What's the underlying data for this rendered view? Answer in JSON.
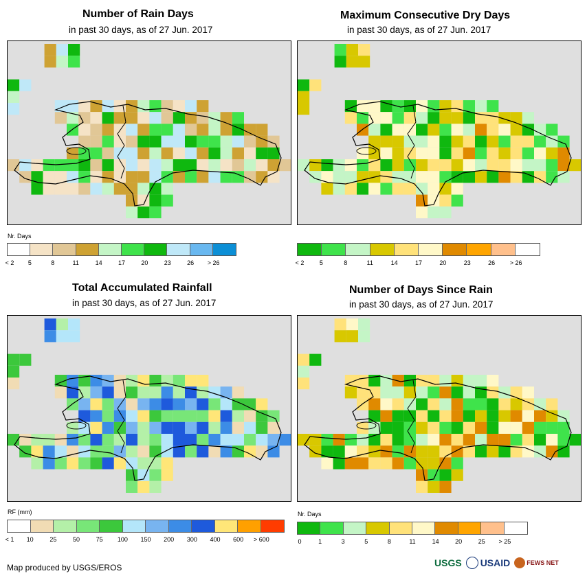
{
  "panels": [
    {
      "id": "rain-days",
      "title": "Number of Rain Days",
      "subtitle": "in past 30 days, as of 27 Jun. 2017",
      "unit": "Nr. Days",
      "legend": {
        "colors": [
          "#ffffff",
          "#f5e3c6",
          "#e1c796",
          "#cea233",
          "#c4f5c6",
          "#3fe34b",
          "#0fb80f",
          "#bfe8f8",
          "#69b8f0",
          "#0c8fd6"
        ],
        "labels": [
          "< 2",
          "5",
          "8",
          "11",
          "14",
          "17",
          "20",
          "23",
          "26",
          "> 26"
        ]
      }
    },
    {
      "id": "max-dry-days",
      "title": "Maximum Consecutive Dry Days",
      "subtitle": "in past 30 days, as of 27 Jun. 2017",
      "unit": "",
      "legend": {
        "colors": [
          "#0fb80f",
          "#3fe34b",
          "#c4f5c6",
          "#d8c800",
          "#ffe27a",
          "#fff8c8",
          "#e08a00",
          "#ffa500",
          "#ffc08c",
          "#ffffff"
        ],
        "labels": [
          "< 2",
          "5",
          "8",
          "11",
          "14",
          "17",
          "20",
          "23",
          "26",
          "> 26"
        ]
      }
    },
    {
      "id": "total-rainfall",
      "title": "Total Accumulated Rainfall",
      "subtitle": "in past 30 days, as of 27 Jun. 2017",
      "unit": "RF (mm)",
      "legend": {
        "colors": [
          "#ffffff",
          "#f1dcb4",
          "#b4f0a8",
          "#78e678",
          "#3cc83c",
          "#b4e6fa",
          "#78b4f0",
          "#3c8ce6",
          "#1e5adc",
          "#ffe678",
          "#ffa000",
          "#ff3c00"
        ],
        "labels": [
          "< 1",
          "10",
          "25",
          "50",
          "75",
          "100",
          "150",
          "200",
          "300",
          "400",
          "600",
          "> 600"
        ]
      }
    },
    {
      "id": "days-since-rain",
      "title": "Number of Days Since Rain",
      "subtitle": "in past 30 days, as of 27 Jun. 2017",
      "unit": "Nr. Days",
      "legend": {
        "colors": [
          "#0fb80f",
          "#3fe34b",
          "#c4f5c6",
          "#d8c800",
          "#ffe27a",
          "#fff8c8",
          "#e08a00",
          "#ffa500",
          "#ffc08c",
          "#ffffff"
        ],
        "labels": [
          "0",
          "1",
          "3",
          "5",
          "8",
          "11",
          "14",
          "20",
          "25",
          "> 25"
        ]
      }
    }
  ],
  "footer": {
    "credit": "Map produced by USGS/EROS",
    "logos": [
      "USGS",
      "USAID",
      "FEWS NET"
    ]
  }
}
